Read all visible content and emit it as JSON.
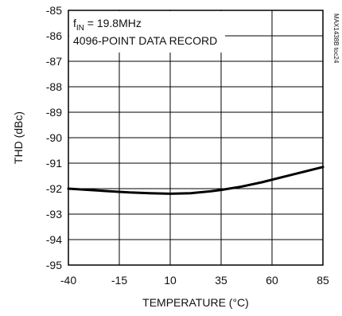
{
  "chart_data": {
    "type": "line",
    "title": "",
    "xlabel": "TEMPERATURE (°C)",
    "ylabel": "THD (dBc)",
    "xlim": [
      -40,
      85
    ],
    "ylim": [
      -95,
      -85
    ],
    "x_ticks": [
      -40,
      -15,
      10,
      35,
      60,
      85
    ],
    "y_ticks": [
      -85,
      -86,
      -87,
      -88,
      -89,
      -90,
      -91,
      -92,
      -93,
      -94,
      -95
    ],
    "grid": true,
    "annotations": {
      "fin_prefix": "f",
      "fin_sub": "IN",
      "fin_value": " = 19.8MHz",
      "record": "4096-POINT DATA RECORD"
    },
    "side_code": "MAX1438B toc24",
    "series": [
      {
        "x": [
          -40,
          -30,
          -20,
          -10,
          0,
          10,
          20,
          30,
          35,
          45,
          55,
          65,
          75,
          85
        ],
        "y": [
          -92.0,
          -92.05,
          -92.1,
          -92.15,
          -92.18,
          -92.2,
          -92.18,
          -92.1,
          -92.05,
          -91.92,
          -91.75,
          -91.55,
          -91.35,
          -91.15
        ]
      }
    ],
    "colors": {
      "line": "#000000",
      "grid": "#000000",
      "background": "#ffffff"
    }
  }
}
